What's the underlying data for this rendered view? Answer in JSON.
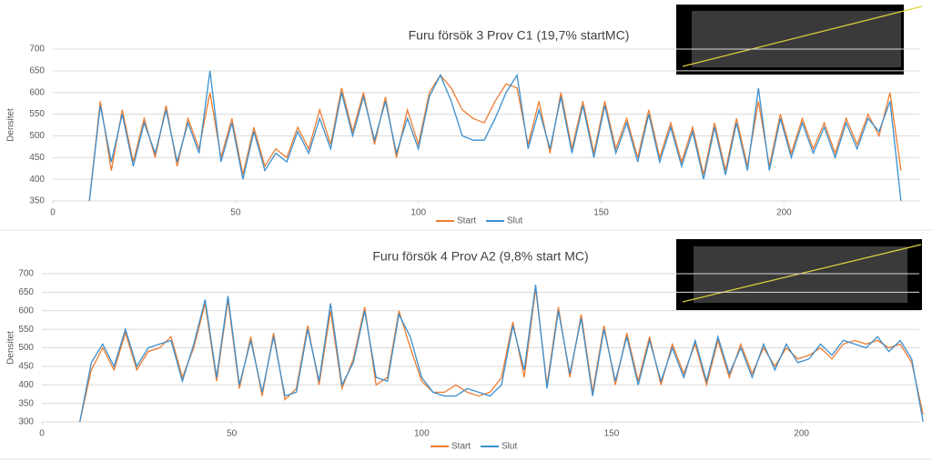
{
  "chart_data": [
    {
      "type": "line",
      "title": "Furu försök 3 Prov C1 (19,7% startMC)",
      "y_label": "Densitet",
      "x": [
        10,
        13,
        16,
        19,
        22,
        25,
        28,
        31,
        34,
        37,
        40,
        43,
        46,
        49,
        52,
        55,
        58,
        61,
        64,
        67,
        70,
        73,
        76,
        79,
        82,
        85,
        88,
        91,
        94,
        97,
        100,
        103,
        106,
        109,
        112,
        115,
        118,
        121,
        124,
        127,
        130,
        133,
        136,
        139,
        142,
        145,
        148,
        151,
        154,
        157,
        160,
        163,
        166,
        169,
        172,
        175,
        178,
        181,
        184,
        187,
        190,
        193,
        196,
        199,
        202,
        205,
        208,
        211,
        214,
        217,
        220,
        223,
        226,
        229,
        232
      ],
      "series": [
        {
          "name": "Start",
          "color": "#ed7d31",
          "values": [
            350,
            580,
            420,
            560,
            440,
            540,
            450,
            570,
            430,
            540,
            470,
            600,
            450,
            540,
            410,
            520,
            430,
            470,
            450,
            520,
            470,
            560,
            480,
            610,
            510,
            600,
            480,
            590,
            450,
            560,
            480,
            600,
            640,
            610,
            560,
            540,
            530,
            580,
            620,
            610,
            480,
            580,
            460,
            600,
            470,
            580,
            460,
            580,
            470,
            540,
            450,
            560,
            450,
            530,
            440,
            520,
            410,
            530,
            420,
            540,
            430,
            580,
            430,
            550,
            460,
            540,
            470,
            530,
            460,
            540,
            480,
            550,
            500,
            600,
            420
          ]
        },
        {
          "name": "Slut",
          "color": "#3a8fd0",
          "values": [
            350,
            570,
            440,
            550,
            430,
            530,
            460,
            560,
            440,
            530,
            460,
            650,
            440,
            530,
            400,
            510,
            420,
            460,
            440,
            510,
            460,
            540,
            470,
            600,
            500,
            590,
            490,
            580,
            460,
            540,
            470,
            590,
            640,
            580,
            500,
            490,
            490,
            540,
            600,
            640,
            470,
            560,
            470,
            590,
            460,
            570,
            450,
            570,
            460,
            530,
            440,
            550,
            440,
            520,
            430,
            510,
            400,
            520,
            410,
            530,
            420,
            610,
            420,
            540,
            450,
            530,
            460,
            520,
            450,
            530,
            470,
            540,
            510,
            580,
            350
          ]
        }
      ],
      "xlim": [
        0,
        237
      ],
      "ylim": [
        350,
        700
      ],
      "xticks": [
        0,
        50,
        100,
        150,
        200
      ],
      "yticks": [
        350,
        400,
        450,
        500,
        550,
        600,
        650,
        700
      ],
      "grid": true,
      "legend": "bottom"
    },
    {
      "type": "line",
      "title": "Furu försök 4 Prov A2 (9,8% start MC)",
      "y_label": "Densitet",
      "x": [
        10,
        13,
        16,
        19,
        22,
        25,
        28,
        31,
        34,
        37,
        40,
        43,
        46,
        49,
        52,
        55,
        58,
        61,
        64,
        67,
        70,
        73,
        76,
        79,
        82,
        85,
        88,
        91,
        94,
        97,
        100,
        103,
        106,
        109,
        112,
        115,
        118,
        121,
        124,
        127,
        130,
        133,
        136,
        139,
        142,
        145,
        148,
        151,
        154,
        157,
        160,
        163,
        166,
        169,
        172,
        175,
        178,
        181,
        184,
        187,
        190,
        193,
        196,
        199,
        202,
        205,
        208,
        211,
        214,
        217,
        220,
        223,
        226,
        229,
        232
      ],
      "series": [
        {
          "name": "Start",
          "color": "#ed7d31",
          "values": [
            300,
            440,
            500,
            440,
            540,
            440,
            490,
            500,
            530,
            420,
            500,
            620,
            410,
            630,
            390,
            530,
            370,
            540,
            360,
            390,
            560,
            400,
            600,
            390,
            470,
            610,
            400,
            420,
            600,
            500,
            410,
            380,
            380,
            400,
            380,
            370,
            380,
            420,
            570,
            420,
            660,
            400,
            610,
            420,
            590,
            380,
            560,
            400,
            540,
            410,
            530,
            400,
            510,
            430,
            510,
            400,
            520,
            420,
            510,
            430,
            500,
            450,
            500,
            470,
            480,
            500,
            470,
            510,
            520,
            510,
            520,
            500,
            510,
            460,
            320
          ]
        },
        {
          "name": "Slut",
          "color": "#3a8fd0",
          "values": [
            300,
            460,
            510,
            450,
            550,
            450,
            500,
            510,
            520,
            410,
            510,
            630,
            420,
            640,
            400,
            520,
            380,
            530,
            370,
            380,
            550,
            410,
            620,
            400,
            460,
            600,
            420,
            410,
            590,
            530,
            420,
            380,
            370,
            370,
            390,
            380,
            370,
            400,
            560,
            440,
            670,
            390,
            600,
            430,
            580,
            370,
            550,
            410,
            530,
            400,
            520,
            410,
            500,
            420,
            520,
            410,
            530,
            430,
            500,
            420,
            510,
            440,
            510,
            460,
            470,
            510,
            480,
            520,
            510,
            500,
            530,
            490,
            520,
            470,
            300
          ]
        }
      ],
      "xlim": [
        0,
        231
      ],
      "ylim": [
        300,
        700
      ],
      "xticks": [
        0,
        50,
        100,
        150,
        200
      ],
      "yticks": [
        300,
        350,
        400,
        450,
        500,
        550,
        600,
        650,
        700
      ],
      "grid": true,
      "legend": "bottom"
    }
  ]
}
